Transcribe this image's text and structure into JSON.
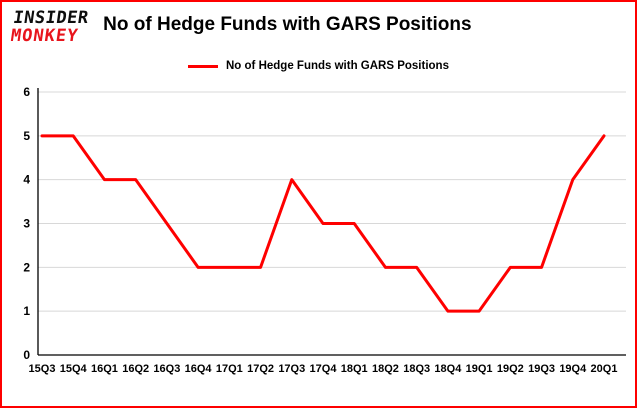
{
  "brand": {
    "line1": "INSIDER",
    "line2": "MONKEY"
  },
  "header": {
    "title": "No of Hedge Funds with GARS Positions"
  },
  "legend": {
    "label": "No of Hedge Funds with GARS Positions"
  },
  "colors": {
    "frame": "#fe0000",
    "line": "#fe0000",
    "grid": "#d8d8d8",
    "axis": "#000000",
    "background": "#ffffff",
    "brand_black": "#0d0d0d",
    "brand_red": "#e8141c"
  },
  "chart_data": {
    "type": "line",
    "title": "No of Hedge Funds with GARS Positions",
    "categories": [
      "15Q3",
      "15Q4",
      "16Q1",
      "16Q2",
      "16Q3",
      "16Q4",
      "17Q1",
      "17Q2",
      "17Q3",
      "17Q4",
      "18Q1",
      "18Q2",
      "18Q3",
      "18Q4",
      "19Q1",
      "19Q2",
      "19Q3",
      "19Q4",
      "20Q1"
    ],
    "values": [
      5,
      5,
      4,
      4,
      3,
      2,
      2,
      2,
      4,
      3,
      3,
      2,
      2,
      1,
      1,
      2,
      2,
      4,
      5
    ],
    "xlabel": "",
    "ylabel": "",
    "ylim": [
      0,
      6
    ],
    "yticks": [
      0,
      1,
      2,
      3,
      4,
      5,
      6
    ],
    "grid": true,
    "legend_position": "top",
    "series": [
      {
        "name": "No of Hedge Funds with GARS Positions",
        "color": "#fe0000"
      }
    ]
  }
}
